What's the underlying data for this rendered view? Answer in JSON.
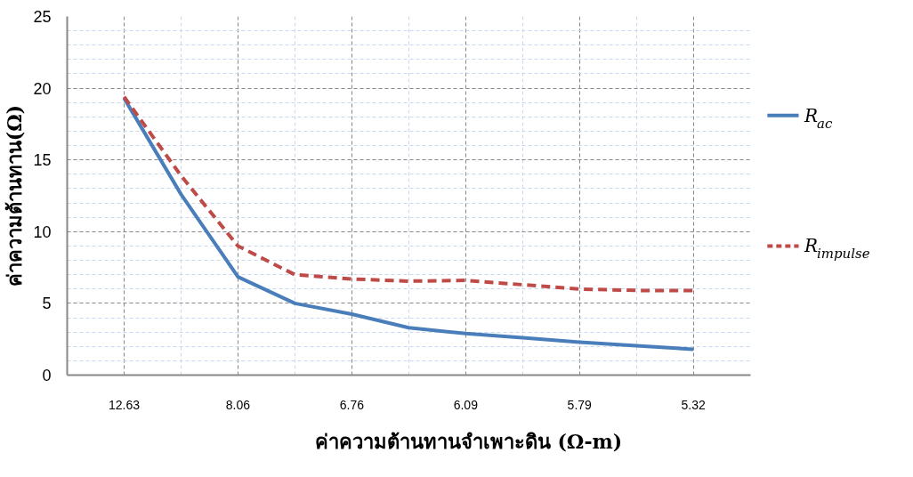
{
  "chart_data": {
    "type": "line",
    "xlabel": "ค่าความต้านทานจำเพาะดิน (Ω-m)",
    "ylabel": "ค่าความต้านทาน(Ω)",
    "categories": [
      "12.63",
      null,
      "8.06",
      null,
      "6.76",
      null,
      "6.09",
      null,
      "5.79",
      null,
      "5.32"
    ],
    "series": [
      {
        "name": "R$_{ac}$",
        "color": "#4a7ebb",
        "line_style": "solid",
        "values": [
          19.3,
          12.6,
          6.85,
          5.0,
          4.25,
          3.3,
          2.9,
          2.6,
          2.3,
          2.05,
          1.8
        ]
      },
      {
        "name": "R$_{impulse}$",
        "color": "#be4b48",
        "line_style": "dashed",
        "values": [
          19.4,
          13.9,
          9.0,
          7.0,
          6.7,
          6.55,
          6.6,
          6.3,
          6.0,
          5.9,
          5.9
        ]
      }
    ],
    "ylim": [
      0,
      25
    ],
    "yticks": [
      0,
      5,
      10,
      15,
      20,
      25
    ],
    "grid": true,
    "legend": "right",
    "marker": "none"
  }
}
